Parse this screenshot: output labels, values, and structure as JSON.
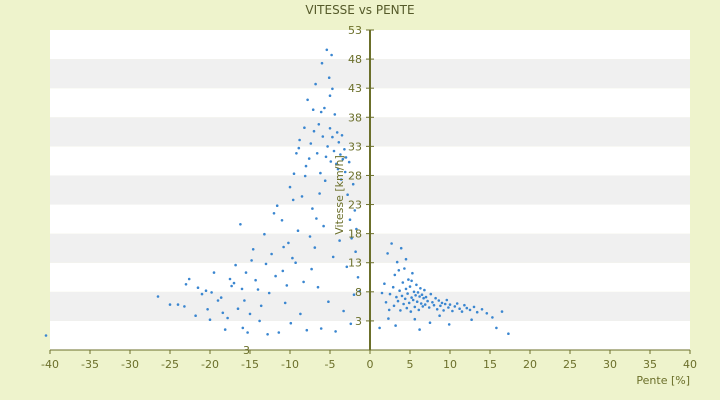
{
  "chart_data": {
    "type": "scatter",
    "title": "VITESSE vs PENTE",
    "xlabel": "Pente [%]",
    "ylabel": "Vitesse [km/h]",
    "xlim": [
      -40,
      40
    ],
    "ylim": [
      -2,
      53
    ],
    "x_ticks": [
      -40,
      -35,
      -30,
      -25,
      -20,
      -15,
      -10,
      -5,
      0,
      5,
      10,
      15,
      20,
      25,
      30,
      35,
      40
    ],
    "y_ticks": [
      3,
      8,
      13,
      18,
      23,
      28,
      33,
      38,
      43,
      48,
      53
    ],
    "y_axis_extra_label": "3",
    "grid": "horizontal bands",
    "legend": "none",
    "colors": {
      "background": "#eef3cc",
      "band_light": "#ffffff",
      "band_dark": "#f0f0f0",
      "point": "#3a86d0",
      "axis": "#6b6f2a"
    },
    "series": [
      {
        "points": [
          [
            -40.5,
            0.5
          ],
          [
            -26.5,
            7.2
          ],
          [
            -25,
            5.8
          ],
          [
            -24,
            5.8
          ],
          [
            -23.2,
            5.5
          ],
          [
            -22.6,
            10.2
          ],
          [
            -21.5,
            8.7
          ],
          [
            -21,
            7.6
          ],
          [
            -20.5,
            8.2
          ],
          [
            -20.3,
            5.0
          ],
          [
            -20,
            3.2
          ],
          [
            -19.5,
            11.3
          ],
          [
            -19,
            6.5
          ],
          [
            -18.6,
            7.0
          ],
          [
            -18.1,
            1.5
          ],
          [
            -17.8,
            3.5
          ],
          [
            -17.5,
            10.2
          ],
          [
            -17,
            9.5
          ],
          [
            -16.8,
            12.6
          ],
          [
            -16.2,
            19.6
          ],
          [
            -16,
            8.5
          ],
          [
            -15.7,
            6.5
          ],
          [
            -15.5,
            11.3
          ],
          [
            -15.3,
            1.0
          ],
          [
            -15,
            4.2
          ],
          [
            -14.6,
            15.3
          ],
          [
            -14.3,
            10.0
          ],
          [
            -14,
            8.4
          ],
          [
            -13.6,
            5.6
          ],
          [
            -13.2,
            17.9
          ],
          [
            -13,
            12.8
          ],
          [
            -12.8,
            0.7
          ],
          [
            -12.3,
            14.5
          ],
          [
            -12,
            21.5
          ],
          [
            -11.6,
            22.8
          ],
          [
            -11.4,
            1.0
          ],
          [
            -11,
            20.3
          ],
          [
            -10.8,
            15.7
          ],
          [
            -10.4,
            9.1
          ],
          [
            -10,
            26.0
          ],
          [
            -9.7,
            13.8
          ],
          [
            -9.5,
            28.3
          ],
          [
            -9.2,
            31.8
          ],
          [
            -9,
            18.5
          ],
          [
            -8.8,
            34.1
          ],
          [
            -8.5,
            24.4
          ],
          [
            -8.2,
            36.2
          ],
          [
            -8,
            29.6
          ],
          [
            -7.8,
            41.0
          ],
          [
            -7.6,
            30.9
          ],
          [
            -7.4,
            33.5
          ],
          [
            -7.2,
            22.3
          ],
          [
            -7,
            35.6
          ],
          [
            -6.8,
            43.7
          ],
          [
            -6.6,
            31.8
          ],
          [
            -6.4,
            36.8
          ],
          [
            -6.2,
            28.4
          ],
          [
            -6,
            47.3
          ],
          [
            -5.9,
            34.7
          ],
          [
            -5.7,
            39.6
          ],
          [
            -5.5,
            31.2
          ],
          [
            -5.4,
            49.6
          ],
          [
            -5.3,
            33.0
          ],
          [
            -5.1,
            44.8
          ],
          [
            -5,
            36.1
          ],
          [
            -4.9,
            30.4
          ],
          [
            -4.8,
            48.7
          ],
          [
            -4.7,
            34.6
          ],
          [
            -4.5,
            32.2
          ],
          [
            -4.4,
            38.5
          ],
          [
            -4.2,
            30.0
          ],
          [
            -4.1,
            35.4
          ],
          [
            -4,
            29.1
          ],
          [
            -3.9,
            33.7
          ],
          [
            -3.7,
            31.6
          ],
          [
            -3.6,
            27.3
          ],
          [
            -3.5,
            34.9
          ],
          [
            -3.4,
            30.8
          ],
          [
            -3.2,
            32.5
          ],
          [
            -3.1,
            28.6
          ],
          [
            -3,
            31.1
          ],
          [
            -2.8,
            24.7
          ],
          [
            -2.6,
            30.3
          ],
          [
            -2.5,
            20.4
          ],
          [
            -2.3,
            17.2
          ],
          [
            -2.1,
            26.5
          ],
          [
            -1.9,
            22.0
          ],
          [
            -1.7,
            18.8
          ],
          [
            -1.5,
            10.5
          ],
          [
            -1.3,
            8.1
          ],
          [
            -8.7,
            4.2
          ],
          [
            -7.9,
            1.4
          ],
          [
            -7.3,
            11.9
          ],
          [
            -6.9,
            15.6
          ],
          [
            -6.5,
            8.8
          ],
          [
            -6.1,
            1.7
          ],
          [
            -5.8,
            19.3
          ],
          [
            -5.2,
            6.3
          ],
          [
            -4.6,
            14.0
          ],
          [
            -4.3,
            1.2
          ],
          [
            -3.8,
            16.8
          ],
          [
            -3.3,
            4.7
          ],
          [
            -2.9,
            12.3
          ],
          [
            -2.4,
            2.5
          ],
          [
            -2.0,
            7.5
          ],
          [
            -1.8,
            14.9
          ],
          [
            -11.8,
            10.7
          ],
          [
            -10.6,
            6.1
          ],
          [
            -9.9,
            2.6
          ],
          [
            -9.3,
            13.0
          ],
          [
            -8.3,
            9.7
          ],
          [
            -7.5,
            17.5
          ],
          [
            -6.7,
            20.6
          ],
          [
            -6.3,
            24.9
          ],
          [
            -5.6,
            27.1
          ],
          [
            -5.0,
            41.7
          ],
          [
            -4.7,
            42.9
          ],
          [
            -6.1,
            38.9
          ],
          [
            -7.1,
            39.3
          ],
          [
            -8.1,
            27.9
          ],
          [
            -8.9,
            32.7
          ],
          [
            -9.6,
            23.8
          ],
          [
            -10.2,
            16.4
          ],
          [
            -10.9,
            11.6
          ],
          [
            -12.6,
            7.8
          ],
          [
            -13.8,
            3.0
          ],
          [
            -14.8,
            13.4
          ],
          [
            -15.9,
            1.8
          ],
          [
            -16.5,
            5.1
          ],
          [
            -17.3,
            9.0
          ],
          [
            -18.4,
            4.4
          ],
          [
            -19.8,
            7.9
          ],
          [
            -21.8,
            3.9
          ],
          [
            -23.0,
            9.3
          ],
          [
            1.2,
            1.8
          ],
          [
            1.5,
            7.8
          ],
          [
            1.8,
            9.4
          ],
          [
            2.0,
            6.2
          ],
          [
            2.2,
            14.6
          ],
          [
            2.4,
            4.9
          ],
          [
            2.5,
            7.6
          ],
          [
            2.7,
            16.3
          ],
          [
            2.9,
            8.8
          ],
          [
            3.0,
            5.6
          ],
          [
            3.1,
            10.9
          ],
          [
            3.3,
            7.1
          ],
          [
            3.4,
            13.1
          ],
          [
            3.5,
            6.4
          ],
          [
            3.7,
            8.2
          ],
          [
            3.8,
            4.8
          ],
          [
            3.9,
            15.5
          ],
          [
            4.0,
            7.3
          ],
          [
            4.1,
            9.6
          ],
          [
            4.2,
            5.9
          ],
          [
            4.3,
            12.0
          ],
          [
            4.4,
            6.8
          ],
          [
            4.5,
            8.5
          ],
          [
            4.6,
            5.2
          ],
          [
            4.7,
            7.7
          ],
          [
            4.8,
            10.1
          ],
          [
            4.9,
            6.1
          ],
          [
            5.0,
            8.9
          ],
          [
            5.1,
            4.6
          ],
          [
            5.2,
            7.0
          ],
          [
            5.3,
            11.2
          ],
          [
            5.4,
            6.6
          ],
          [
            5.5,
            8.0
          ],
          [
            5.6,
            5.4
          ],
          [
            5.7,
            7.4
          ],
          [
            5.8,
            9.2
          ],
          [
            5.9,
            6.3
          ],
          [
            6.0,
            7.9
          ],
          [
            6.1,
            4.9
          ],
          [
            6.2,
            7.2
          ],
          [
            6.3,
            8.6
          ],
          [
            6.4,
            6.0
          ],
          [
            6.5,
            7.5
          ],
          [
            6.6,
            5.5
          ],
          [
            6.7,
            6.9
          ],
          [
            6.8,
            8.3
          ],
          [
            6.9,
            5.8
          ],
          [
            7.0,
            7.1
          ],
          [
            7.2,
            6.4
          ],
          [
            7.4,
            5.3
          ],
          [
            7.6,
            7.6
          ],
          [
            7.8,
            6.2
          ],
          [
            8.0,
            5.7
          ],
          [
            8.2,
            6.9
          ],
          [
            8.4,
            5.0
          ],
          [
            8.6,
            6.5
          ],
          [
            8.8,
            5.6
          ],
          [
            9.0,
            6.1
          ],
          [
            9.2,
            4.8
          ],
          [
            9.4,
            5.9
          ],
          [
            9.6,
            6.6
          ],
          [
            9.8,
            5.3
          ],
          [
            10.0,
            5.8
          ],
          [
            10.3,
            4.7
          ],
          [
            10.6,
            5.5
          ],
          [
            10.9,
            6.0
          ],
          [
            11.2,
            5.1
          ],
          [
            11.5,
            4.6
          ],
          [
            11.8,
            5.7
          ],
          [
            12.1,
            5.2
          ],
          [
            12.5,
            4.9
          ],
          [
            13.0,
            5.4
          ],
          [
            13.4,
            4.5
          ],
          [
            14.0,
            5.0
          ],
          [
            14.6,
            4.3
          ],
          [
            15.3,
            3.6
          ],
          [
            15.8,
            1.8
          ],
          [
            16.5,
            4.6
          ],
          [
            17.3,
            0.8
          ],
          [
            3.6,
            11.7
          ],
          [
            4.5,
            13.6
          ],
          [
            5.2,
            9.9
          ],
          [
            2.3,
            3.4
          ],
          [
            3.2,
            2.2
          ],
          [
            5.6,
            3.3
          ],
          [
            6.2,
            1.5
          ],
          [
            7.5,
            2.7
          ],
          [
            8.7,
            3.9
          ],
          [
            9.9,
            2.4
          ],
          [
            12.7,
            3.2
          ]
        ]
      }
    ]
  }
}
